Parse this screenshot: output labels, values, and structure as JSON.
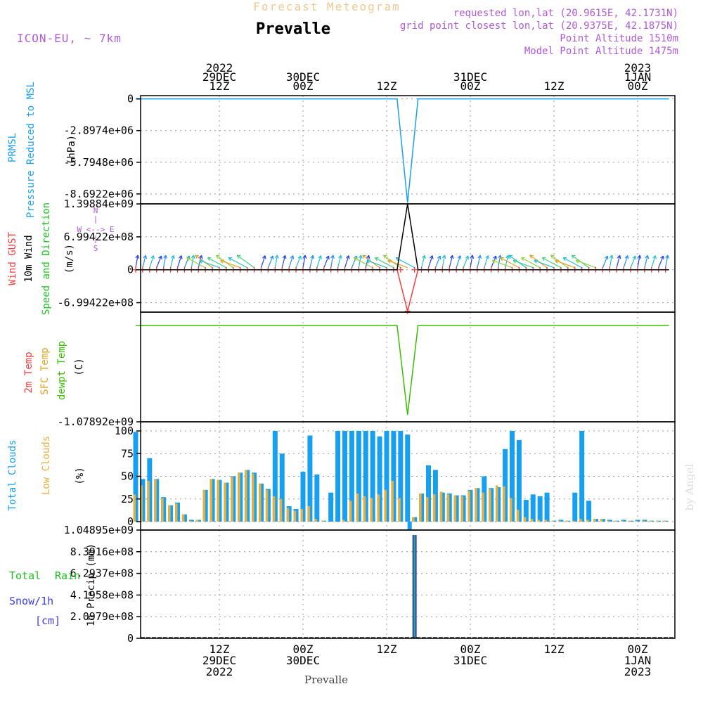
{
  "header": {
    "product": "Forecast Meteogram",
    "location": "Prevalle",
    "model": "ICON-EU, ~ 7km",
    "requested": "requested lon,lat (20.9615E, 42.1731N)",
    "gridpoint": "grid point closest lon,lat (20.9375E, 42.1875N)",
    "point_alt": "Point Altitude 1510m",
    "model_alt": "Model Point Altitude 1475m",
    "footer_name": "Prevalle",
    "credit": "by Angel"
  },
  "colors": {
    "pressure": "#1aa0f0",
    "gust": "#f03c3c",
    "wind": "#000000",
    "dir": "#20c020",
    "t2m": "#f03c3c",
    "sfc": "#e6a01e",
    "dewpt": "#38c000",
    "total_clouds": "#18a0f0",
    "low_clouds": "#e6b040",
    "rain": "#20c020",
    "snow": "#3c3cf0",
    "title_purple": "#b05ad8",
    "product_orange": "#f0c890"
  },
  "time_axis": {
    "top": [
      {
        "lines": [
          "2022",
          "29DEC",
          "12Z"
        ],
        "tick": 12
      },
      {
        "lines": [
          "30DEC",
          "00Z"
        ],
        "tick": 24
      },
      {
        "lines": [
          "12Z"
        ],
        "tick": 36
      },
      {
        "lines": [
          "31DEC",
          "00Z"
        ],
        "tick": 48
      },
      {
        "lines": [
          "12Z"
        ],
        "tick": 60
      },
      {
        "lines": [
          "2023",
          "1JAN",
          "00Z"
        ],
        "tick": 72
      }
    ],
    "bottom": [
      {
        "lines": [
          "12Z",
          "29DEC",
          "2022"
        ],
        "tick": 12
      },
      {
        "lines": [
          "00Z",
          "30DEC"
        ],
        "tick": 24
      },
      {
        "lines": [
          "12Z"
        ],
        "tick": 36
      },
      {
        "lines": [
          "00Z",
          "31DEC"
        ],
        "tick": 48
      },
      {
        "lines": [
          "12Z"
        ],
        "tick": 60
      },
      {
        "lines": [
          "00Z",
          "1JAN",
          "2023"
        ],
        "tick": 72
      }
    ]
  },
  "panels": {
    "pressure": {
      "label1": "PRMSL",
      "label2": "Pressure Reduced to MSL",
      "unit": "(hPa)",
      "ticks": [
        "0",
        "-2.8974e+06",
        "-5.7948e+06",
        "-8.6922e+06"
      ]
    },
    "wind": {
      "label_gust": "Wind GUST",
      "label_wind": "10m Wind",
      "label_dir1": "Speed and Direction",
      "unit": "(m/s)",
      "compass_n": "N",
      "compass_row": "W <--> E",
      "compass_s": "S",
      "ticks": [
        "1.39884e+09",
        "6.99422e+08",
        "0",
        "-6.99422e+08"
      ]
    },
    "temp": {
      "label_t2m": "2m Temp",
      "label_sfc": "SFC Temp",
      "label_dew": "dewpt Temp",
      "unit": "(C)",
      "ticks": [
        "-1.07892e+09"
      ]
    },
    "clouds": {
      "label_total": "Total Clouds",
      "label_low": "Low Clouds",
      "unit": "(%)",
      "ticks": [
        "100",
        "75",
        "50",
        "25",
        "0"
      ]
    },
    "precip": {
      "label_total": "Total",
      "label_rain": "Rain",
      "label_snow": "Snow/1h",
      "label_cm": "[cm]",
      "unit": "1h Precip (mm)",
      "ticks": [
        "1.04895e+09",
        "8.3916e+08",
        "6.2937e+08",
        "4.1958e+08",
        "2.0979e+08",
        "0"
      ]
    }
  },
  "chart_data": [
    {
      "type": "line",
      "title": "PRMSL",
      "ylabel": "(hPa)",
      "ylim": [
        -9600000,
        300000
      ],
      "x_hours": [
        0,
        37.5,
        39,
        40.5,
        76.5
      ],
      "values": [
        0,
        0,
        -9500000,
        0,
        0
      ]
    },
    {
      "type": "line",
      "title": "10m Wind Speed and Direction",
      "ylabel": "(m/s)",
      "ylim": [
        -900000000,
        1400000000
      ],
      "series": [
        {
          "name": "Wind GUST",
          "x_hours": [
            0,
            37.5,
            39,
            40.5,
            76.5
          ],
          "values": [
            0,
            0,
            -880000000,
            0,
            0
          ]
        },
        {
          "name": "10m Wind",
          "x_hours": [
            0,
            37.5,
            39,
            40.5,
            76.5
          ],
          "values": [
            0,
            0,
            1398840000,
            0,
            0
          ]
        }
      ]
    },
    {
      "type": "line",
      "title": "dewpt Temp",
      "ylabel": "(C)",
      "ylim": [
        -1078920000,
        150000000
      ],
      "x_hours": [
        0,
        37.5,
        39,
        40.5,
        76.5
      ],
      "values": [
        0,
        0,
        -1000000000,
        0,
        0
      ]
    },
    {
      "type": "bar",
      "title": "Total Clouds / Low Clouds",
      "ylabel": "(%)",
      "ylim": [
        0,
        100
      ],
      "series": [
        {
          "name": "Total Clouds",
          "values": [
            99,
            47,
            70,
            47,
            27,
            18,
            21,
            8,
            2,
            2,
            35,
            47,
            46,
            43,
            50,
            54,
            57,
            54,
            42,
            36,
            100,
            75,
            17,
            14,
            55,
            95,
            52,
            1,
            32,
            100,
            100,
            100,
            100,
            100,
            100,
            94,
            100,
            100,
            100,
            96,
            5,
            31,
            62,
            57,
            32,
            31,
            29,
            29,
            35,
            37,
            50,
            37,
            38,
            80,
            100,
            90,
            24,
            30,
            28,
            32,
            1,
            2,
            1,
            32,
            100,
            23,
            3,
            3,
            2,
            1,
            2,
            1,
            2,
            2,
            1,
            1,
            1
          ]
        },
        {
          "name": "Low Clouds",
          "values": [
            30,
            40,
            45,
            47,
            26,
            18,
            20,
            8,
            1,
            2,
            35,
            47,
            46,
            43,
            49,
            54,
            57,
            53,
            42,
            35,
            28,
            25,
            15,
            12,
            14,
            17,
            3,
            1,
            0,
            0,
            2,
            23,
            31,
            28,
            26,
            30,
            35,
            45,
            26,
            0,
            5,
            31,
            27,
            30,
            33,
            30,
            29,
            28,
            34,
            37,
            32,
            36,
            40,
            39,
            26,
            13,
            5,
            3,
            2,
            2,
            1,
            1,
            1,
            1,
            3,
            2,
            3,
            3,
            1,
            1,
            1,
            1,
            1,
            1,
            1,
            1,
            1
          ]
        },
        {
          "name": "gap",
          "values": []
        }
      ]
    },
    {
      "type": "bar",
      "title": "1h Precip",
      "ylabel": "1h Precip (mm)",
      "ylim": [
        0,
        1048950000
      ],
      "series": [
        {
          "name": "Total",
          "x_hours": [
            40
          ],
          "values": [
            1048950000
          ]
        },
        {
          "name": "Snow/1h",
          "x_hours": [
            40
          ],
          "values": [
            1048950000
          ]
        }
      ]
    }
  ]
}
